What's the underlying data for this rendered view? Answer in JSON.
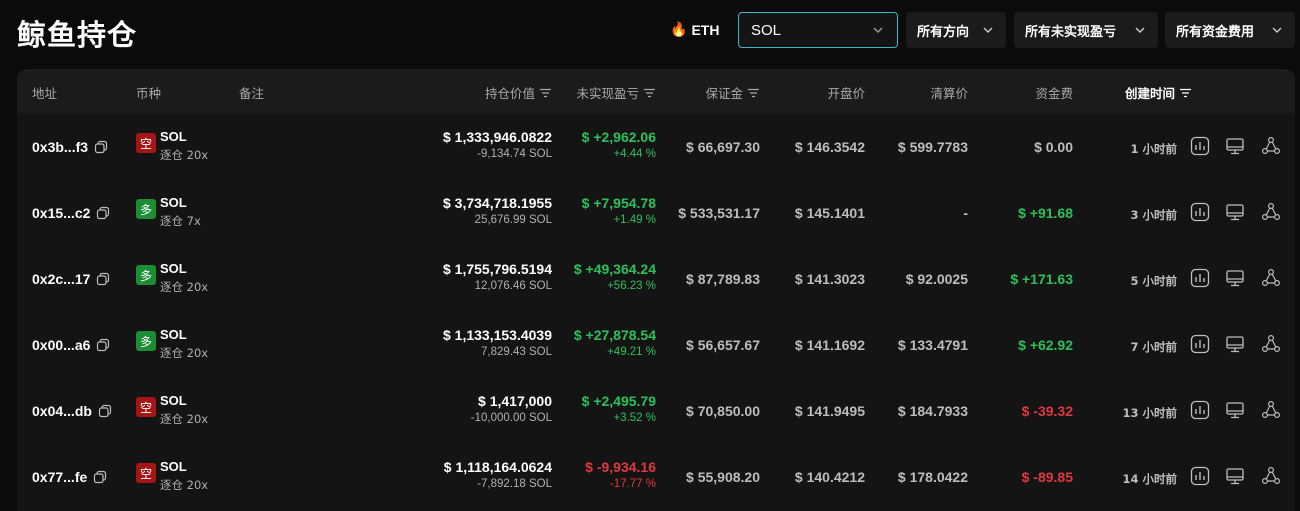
{
  "page": {
    "title": "鲸鱼持仓"
  },
  "filters": {
    "eth_label": "ETH",
    "coin_value": "SOL",
    "direction": "所有方向",
    "pnl": "所有未实现盈亏",
    "funding": "所有资金费用"
  },
  "columns": {
    "address": "地址",
    "coin": "币种",
    "note": "备注",
    "value": "持仓价值",
    "pnl": "未实现盈亏",
    "margin": "保证金",
    "entry": "开盘价",
    "liq": "清算价",
    "funding": "资金费",
    "created": "创建时间"
  },
  "colors": {
    "accent": "#38b7c6",
    "long": "#1b8e35",
    "short": "#a51515",
    "profit": "#29c25a",
    "loss": "#e0383e"
  },
  "rows": [
    {
      "address": "0x3b...f3",
      "side": "空",
      "side_type": "short",
      "coin": "SOL",
      "leverage": "逐仓 20x",
      "value": "$ 1,333,946.0822",
      "amount": "-9,134.74 SOL",
      "pnl": "$ +2,962.06",
      "pnl_pct": "+4.44 %",
      "pnl_type": "green",
      "margin": "$ 66,697.30",
      "entry": "$ 146.3542",
      "liq": "$ 599.7783",
      "funding": "$ 0.00",
      "funding_type": "gray",
      "created": "1 小时前"
    },
    {
      "address": "0x15...c2",
      "side": "多",
      "side_type": "long",
      "coin": "SOL",
      "leverage": "逐仓 7x",
      "value": "$ 3,734,718.1955",
      "amount": "25,676.99 SOL",
      "pnl": "$ +7,954.78",
      "pnl_pct": "+1.49 %",
      "pnl_type": "green",
      "margin": "$ 533,531.17",
      "entry": "$ 145.1401",
      "liq": "-",
      "funding": "$ +91.68",
      "funding_type": "green",
      "created": "3 小时前"
    },
    {
      "address": "0x2c...17",
      "side": "多",
      "side_type": "long",
      "coin": "SOL",
      "leverage": "逐仓 20x",
      "value": "$ 1,755,796.5194",
      "amount": "12,076.46 SOL",
      "pnl": "$ +49,364.24",
      "pnl_pct": "+56.23 %",
      "pnl_type": "green",
      "margin": "$ 87,789.83",
      "entry": "$ 141.3023",
      "liq": "$ 92.0025",
      "funding": "$ +171.63",
      "funding_type": "green",
      "created": "5 小时前"
    },
    {
      "address": "0x00...a6",
      "side": "多",
      "side_type": "long",
      "coin": "SOL",
      "leverage": "逐仓 20x",
      "value": "$ 1,133,153.4039",
      "amount": "7,829.43 SOL",
      "pnl": "$ +27,878.54",
      "pnl_pct": "+49.21 %",
      "pnl_type": "green",
      "margin": "$ 56,657.67",
      "entry": "$ 141.1692",
      "liq": "$ 133.4791",
      "funding": "$ +62.92",
      "funding_type": "green",
      "created": "7 小时前"
    },
    {
      "address": "0x04...db",
      "side": "空",
      "side_type": "short",
      "coin": "SOL",
      "leverage": "逐仓 20x",
      "value": "$ 1,417,000",
      "amount": "-10,000.00 SOL",
      "pnl": "$ +2,495.79",
      "pnl_pct": "+3.52 %",
      "pnl_type": "green",
      "margin": "$ 70,850.00",
      "entry": "$ 141.9495",
      "liq": "$ 184.7933",
      "funding": "$ -39.32",
      "funding_type": "red",
      "created": "13 小时前"
    },
    {
      "address": "0x77...fe",
      "side": "空",
      "side_type": "short",
      "coin": "SOL",
      "leverage": "逐仓 20x",
      "value": "$ 1,118,164.0624",
      "amount": "-7,892.18 SOL",
      "pnl": "$ -9,934.16",
      "pnl_pct": "-17.77 %",
      "pnl_type": "red",
      "margin": "$ 55,908.20",
      "entry": "$ 140.4212",
      "liq": "$ 178.0422",
      "funding": "$ -89.85",
      "funding_type": "red",
      "created": "14 小时前"
    }
  ]
}
